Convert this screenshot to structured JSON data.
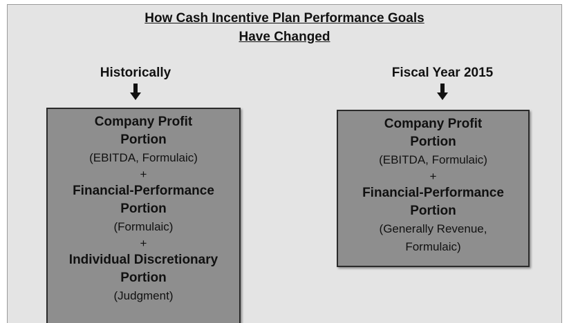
{
  "title": [
    "How Cash Incentive Plan Performance Goals",
    "Have Changed"
  ],
  "connector": "+",
  "columns": [
    {
      "heading": "Historically",
      "items": [
        {
          "name": [
            "Company Profit",
            "Portion"
          ],
          "detail": [
            "(EBITDA, Formulaic)"
          ]
        },
        {
          "name": [
            "Financial-Performance",
            "Portion"
          ],
          "detail": [
            "(Formulaic)"
          ]
        },
        {
          "name": [
            "Individual Discretionary",
            "Portion"
          ],
          "detail": [
            "(Judgment)"
          ]
        }
      ]
    },
    {
      "heading": "Fiscal Year 2015",
      "items": [
        {
          "name": [
            "Company Profit",
            "Portion"
          ],
          "detail": [
            "(EBITDA, Formulaic)"
          ]
        },
        {
          "name": [
            "Financial-Performance",
            "Portion"
          ],
          "detail": [
            "(Generally Revenue,",
            "Formulaic)"
          ]
        }
      ]
    }
  ]
}
